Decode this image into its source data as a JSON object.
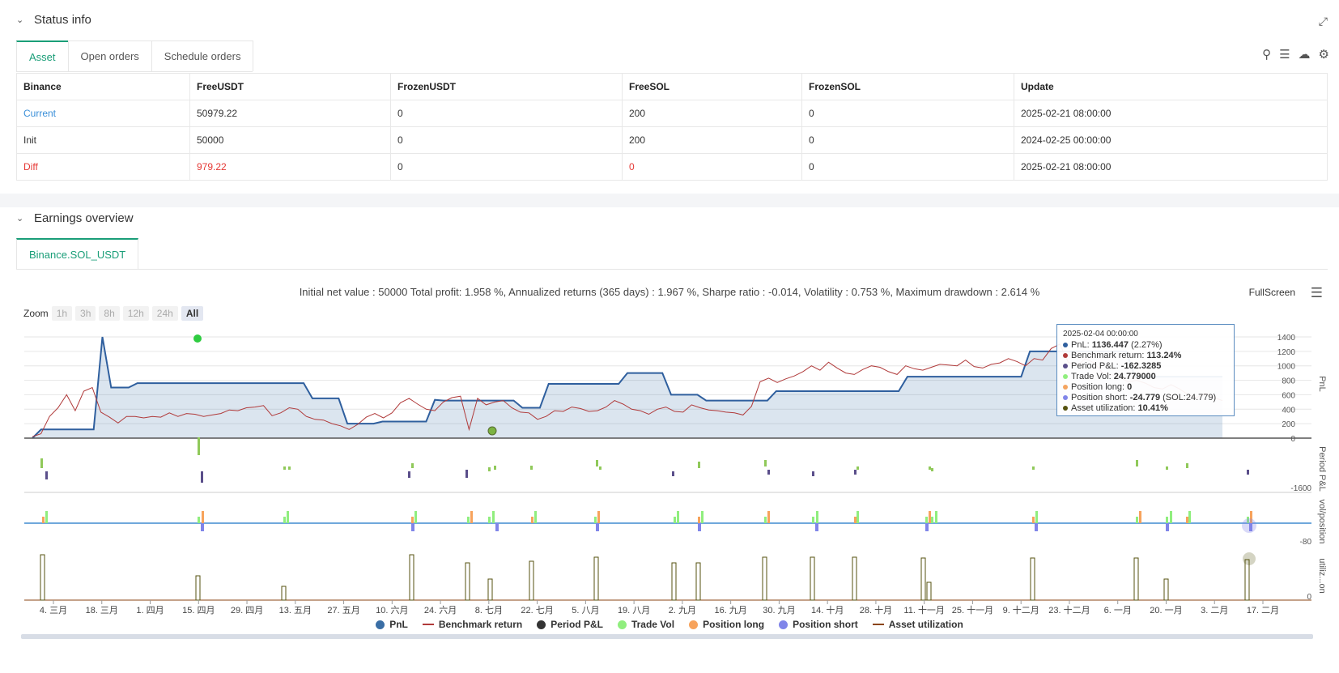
{
  "status": {
    "title": "Status info",
    "tabs": [
      {
        "label": "Asset",
        "active": true
      },
      {
        "label": "Open orders",
        "active": false
      },
      {
        "label": "Schedule orders",
        "active": false
      }
    ],
    "columns": [
      "Binance",
      "FreeUSDT",
      "FrozenUSDT",
      "FreeSOL",
      "FrozenSOL",
      "Update"
    ],
    "rows": [
      {
        "cells": [
          "Current",
          "50979.22",
          "0",
          "200",
          "0",
          "2025-02-21 08:00:00"
        ]
      },
      {
        "cells": [
          "Init",
          "50000",
          "0",
          "200",
          "0",
          "2024-02-25 00:00:00"
        ]
      },
      {
        "cells": [
          "Diff",
          "979.22",
          "0",
          "0",
          "0",
          "2025-02-21 08:00:00"
        ]
      }
    ],
    "colors": {
      "current": "#3a8fd9",
      "diff": "#e53935",
      "accent": "#1a9e78"
    }
  },
  "earnings": {
    "title": "Earnings overview",
    "tab_label": "Binance.SOL_USDT",
    "summary": "Initial net value : 50000 Total profit: 1.958 %, Annualized returns (365 days) : 1.967 %, Sharpe ratio : -0.014, Volatility : 0.753 %, Maximum drawdown : 2.614 %",
    "fullscreen_label": "FullScreen",
    "zoom": {
      "label": "Zoom",
      "buttons": [
        "1h",
        "3h",
        "8h",
        "12h",
        "24h",
        "All"
      ],
      "active": "All"
    },
    "tooltip": {
      "date": "2025-02-04 00:00:00",
      "rows": [
        {
          "label": "PnL: ",
          "value": "1136.447",
          "extra": " (2.27%)",
          "color": "#2f5f9e"
        },
        {
          "label": "Benchmark return: ",
          "value": "113.24%",
          "extra": "",
          "color": "#b03a3a"
        },
        {
          "label": "Period P&L: ",
          "value": "-162.3285",
          "extra": "",
          "color": "#5a4e8a"
        },
        {
          "label": "Trade Vol: ",
          "value": "24.779000",
          "extra": "",
          "color": "#90ee7e"
        },
        {
          "label": "Position long: ",
          "value": "0",
          "extra": "",
          "color": "#f4a460"
        },
        {
          "label": "Position short: ",
          "value": "-24.779",
          "extra": " (SOL:24.779)",
          "color": "#8085e9"
        },
        {
          "label": "Asset utilization: ",
          "value": "10.41%",
          "extra": "",
          "color": "#55520f"
        }
      ]
    },
    "legend": [
      {
        "label": "PnL",
        "color": "#3a6ea5",
        "kind": "dot"
      },
      {
        "label": "Benchmark return",
        "color": "#b03a3a",
        "kind": "line"
      },
      {
        "label": "Period P&L",
        "color": "#333333",
        "kind": "dot"
      },
      {
        "label": "Trade Vol",
        "color": "#90ee7e",
        "kind": "dot"
      },
      {
        "label": "Position long",
        "color": "#f7a35c",
        "kind": "dot"
      },
      {
        "label": "Position short",
        "color": "#8085e9",
        "kind": "dot"
      },
      {
        "label": "Asset utilization",
        "color": "#8b4513",
        "kind": "line"
      }
    ]
  },
  "chart_data": {
    "type": "line",
    "x_ticks": [
      "4. 三月",
      "18. 三月",
      "1. 四月",
      "15. 四月",
      "29. 四月",
      "13. 五月",
      "27. 五月",
      "10. 六月",
      "24. 六月",
      "8. 七月",
      "22. 七月",
      "5. 八月",
      "19. 八月",
      "2. 九月",
      "16. 九月",
      "30. 九月",
      "14. 十月",
      "28. 十月",
      "11. 十一月",
      "25. 十一月",
      "9. 十二月",
      "23. 十二月",
      "6. 一月",
      "20. 一月",
      "3. 二月",
      "17. 二月"
    ],
    "panes": [
      {
        "ylabel": "PnL",
        "ticks": [
          "1400",
          "1200",
          "1000",
          "800",
          "600",
          "400",
          "200",
          "0"
        ],
        "ylim": [
          0,
          1400
        ]
      },
      {
        "ylabel": "Period P&L",
        "ticks": [
          "-1600"
        ]
      },
      {
        "ylabel": "vol/position",
        "ticks": [
          "-80"
        ]
      },
      {
        "ylabel": "utiliz...on",
        "ticks": [
          "0"
        ]
      }
    ],
    "series": [
      {
        "name": "PnL",
        "values": [
          0,
          120,
          120,
          120,
          120,
          120,
          120,
          120,
          1400,
          700,
          700,
          700,
          760,
          760,
          760,
          760,
          760,
          760,
          760,
          760,
          760,
          760,
          760,
          760,
          760,
          760,
          760,
          760,
          760,
          760,
          760,
          760,
          550,
          550,
          550,
          550,
          200,
          200,
          200,
          200,
          230,
          230,
          230,
          230,
          230,
          230,
          530,
          520,
          520,
          520,
          520,
          520,
          520,
          520,
          520,
          520,
          420,
          420,
          420,
          750,
          750,
          750,
          750,
          750,
          750,
          750,
          750,
          750,
          900,
          900,
          900,
          900,
          900,
          600,
          600,
          600,
          600,
          520,
          520,
          520,
          520,
          520,
          520,
          520,
          520,
          650,
          650,
          650,
          650,
          650,
          650,
          650,
          650,
          650,
          650,
          650,
          650,
          650,
          650,
          650,
          850,
          850,
          850,
          850,
          850,
          850,
          850,
          850,
          850,
          850,
          850,
          850,
          850,
          850,
          1200,
          1200,
          1200,
          1200,
          1200,
          1200,
          1200,
          1200,
          1200,
          1200,
          1200,
          1200,
          850,
          850,
          850,
          850,
          850,
          850,
          850,
          850,
          850,
          850,
          850
        ]
      },
      {
        "name": "Benchmark return",
        "values": [
          20,
          60,
          300,
          420,
          600,
          380,
          650,
          700,
          360,
          290,
          210,
          300,
          300,
          280,
          300,
          290,
          350,
          300,
          340,
          330,
          300,
          320,
          340,
          390,
          380,
          420,
          430,
          450,
          310,
          350,
          420,
          400,
          300,
          260,
          250,
          200,
          170,
          120,
          190,
          290,
          340,
          280,
          350,
          490,
          550,
          470,
          400,
          380,
          500,
          560,
          580,
          120,
          550,
          460,
          500,
          520,
          420,
          360,
          350,
          260,
          300,
          380,
          370,
          430,
          410,
          370,
          380,
          430,
          520,
          470,
          400,
          380,
          330,
          400,
          430,
          370,
          360,
          460,
          420,
          390,
          380,
          360,
          350,
          320,
          440,
          780,
          830,
          770,
          820,
          860,
          920,
          1000,
          940,
          1050,
          970,
          900,
          880,
          950,
          1000,
          980,
          920,
          880,
          1000,
          960,
          940,
          980,
          1020,
          1010,
          1000,
          1080,
          990,
          970,
          1020,
          1040,
          1100,
          1060,
          1000,
          1100,
          1080,
          1240,
          1300,
          1050,
          1000,
          1100,
          1040,
          900,
          880,
          840,
          780,
          800,
          760,
          700,
          680,
          740,
          680,
          600,
          560,
          620,
          560,
          520
        ]
      }
    ]
  }
}
